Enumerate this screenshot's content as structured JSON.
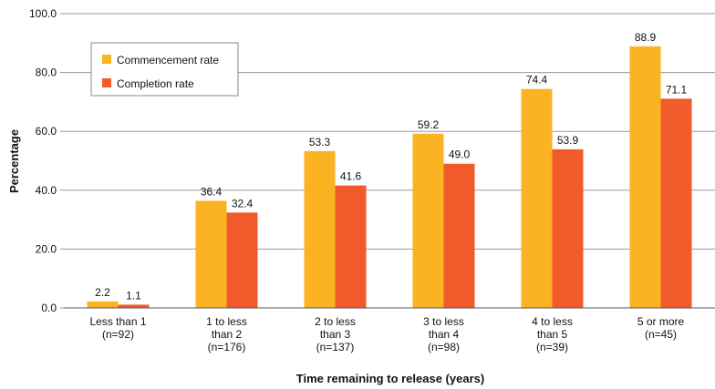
{
  "chart_data": {
    "type": "bar",
    "title": "",
    "xlabel": "Time remaining to release (years)",
    "ylabel": "Percentage",
    "ylim": [
      0,
      100
    ],
    "yticks": [
      "0.0",
      "20.0",
      "40.0",
      "60.0",
      "80.0",
      "100.0"
    ],
    "grid": true,
    "legend_position": "top-left",
    "categories": [
      [
        "Less than 1",
        "(n=92)"
      ],
      [
        "1 to less",
        "than 2",
        "(n=176)"
      ],
      [
        "2 to less",
        "than 3",
        "(n=137)"
      ],
      [
        "3 to less",
        "than 4",
        "(n=98)"
      ],
      [
        "4 to less",
        "than 5",
        "(n=39)"
      ],
      [
        "5 or more",
        "(n=45)"
      ]
    ],
    "series": [
      {
        "name": "Commencement rate",
        "color": "#FBB324",
        "values": [
          2.2,
          36.4,
          53.3,
          59.2,
          74.4,
          88.9
        ]
      },
      {
        "name": "Completion rate",
        "color": "#F15A2B",
        "values": [
          1.1,
          32.4,
          41.6,
          49.0,
          53.9,
          71.1
        ]
      }
    ]
  }
}
